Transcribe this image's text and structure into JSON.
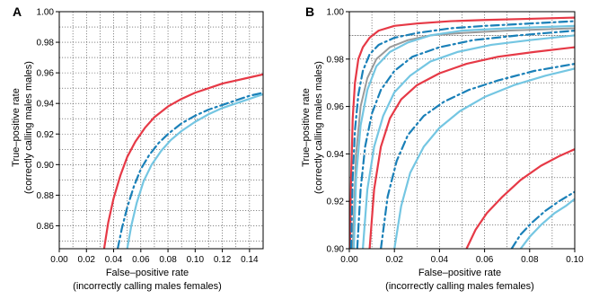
{
  "colors": {
    "red": "#e63946",
    "blue_dashdot": "#1a80b8",
    "light_blue": "#74c6e2",
    "grey": "#9a9a9a"
  },
  "chart_data": [
    {
      "panel": "A",
      "type": "line",
      "xlabel": [
        "False–positive rate",
        "(incorrectly calling males females)"
      ],
      "ylabel": [
        "True–positive rate",
        "(correctly calling males males)"
      ],
      "xlim": [
        0.0,
        0.15
      ],
      "ylim": [
        0.845,
        1.0
      ],
      "xticks": [
        0.0,
        0.02,
        0.04,
        0.06,
        0.08,
        0.1,
        0.12,
        0.14
      ],
      "xtick_labels": [
        "0.00",
        "0.02",
        "0.04",
        "0.06",
        "0.08",
        "0.10",
        "0.12",
        "0.14"
      ],
      "yticks": [
        0.86,
        0.88,
        0.9,
        0.92,
        0.94,
        0.96,
        0.98,
        1.0
      ],
      "ytick_labels": [
        "0.86",
        "0.88",
        "0.90",
        "0.92",
        "0.94",
        "0.96",
        "0.98",
        "1.00"
      ],
      "grid": "dotted",
      "series": [
        {
          "style": "solid",
          "color": "red",
          "x": [
            0.033,
            0.036,
            0.04,
            0.045,
            0.05,
            0.056,
            0.063,
            0.07,
            0.08,
            0.09,
            0.1,
            0.11,
            0.12,
            0.13,
            0.14,
            0.15
          ],
          "y": [
            0.845,
            0.862,
            0.878,
            0.893,
            0.905,
            0.915,
            0.924,
            0.931,
            0.938,
            0.943,
            0.947,
            0.95,
            0.953,
            0.955,
            0.957,
            0.959
          ]
        },
        {
          "style": "dashdot",
          "color": "blue_dashdot",
          "x": [
            0.043,
            0.046,
            0.05,
            0.055,
            0.06,
            0.066,
            0.073,
            0.08,
            0.09,
            0.1,
            0.11,
            0.12,
            0.13,
            0.14,
            0.15
          ],
          "y": [
            0.845,
            0.858,
            0.872,
            0.886,
            0.897,
            0.906,
            0.914,
            0.92,
            0.927,
            0.932,
            0.936,
            0.939,
            0.942,
            0.945,
            0.947
          ]
        },
        {
          "style": "solid",
          "color": "light_blue",
          "x": [
            0.05,
            0.053,
            0.057,
            0.062,
            0.068,
            0.075,
            0.082,
            0.09,
            0.1,
            0.11,
            0.12,
            0.13,
            0.14,
            0.15
          ],
          "y": [
            0.845,
            0.86,
            0.875,
            0.889,
            0.9,
            0.909,
            0.916,
            0.922,
            0.928,
            0.933,
            0.937,
            0.94,
            0.943,
            0.946
          ]
        }
      ]
    },
    {
      "panel": "B",
      "type": "line",
      "xlabel": [
        "False–positive rate",
        "(incorrectly calling males females)"
      ],
      "ylabel": [
        "True–positive rate",
        "(correctly calling males males)"
      ],
      "xlim": [
        0.0,
        0.1
      ],
      "ylim": [
        0.9,
        1.0
      ],
      "xticks": [
        0.0,
        0.02,
        0.04,
        0.06,
        0.08,
        0.1
      ],
      "xtick_labels": [
        "0.00",
        "0.02",
        "0.04",
        "0.06",
        "0.08",
        "0.10"
      ],
      "yticks": [
        0.9,
        0.92,
        0.94,
        0.96,
        0.98,
        1.0
      ],
      "ytick_labels": [
        "0.90",
        "0.92",
        "0.94",
        "0.96",
        "0.98",
        "1.00"
      ],
      "grid": "dotted",
      "series": [
        {
          "style": "solid",
          "color": "red",
          "x": [
            0.0003,
            0.0008,
            0.0015,
            0.0025,
            0.004,
            0.006,
            0.009,
            0.013,
            0.02,
            0.03,
            0.045,
            0.06,
            0.08,
            0.1
          ],
          "y": [
            0.9,
            0.93,
            0.955,
            0.97,
            0.98,
            0.985,
            0.989,
            0.992,
            0.994,
            0.995,
            0.996,
            0.9965,
            0.997,
            0.9975
          ]
        },
        {
          "style": "solid",
          "color": "grey",
          "x": [
            0.0015,
            0.003,
            0.005,
            0.008,
            0.012,
            0.018,
            0.026,
            0.036,
            0.05,
            0.07,
            0.1
          ],
          "y": [
            0.9,
            0.94,
            0.96,
            0.972,
            0.98,
            0.985,
            0.988,
            0.99,
            0.991,
            0.992,
            0.993
          ]
        },
        {
          "style": "dashdot",
          "color": "blue_dashdot",
          "x": [
            0.0008,
            0.0015,
            0.0025,
            0.004,
            0.006,
            0.009,
            0.013,
            0.02,
            0.03,
            0.045,
            0.06,
            0.08,
            0.1
          ],
          "y": [
            0.9,
            0.93,
            0.95,
            0.965,
            0.975,
            0.982,
            0.986,
            0.989,
            0.991,
            0.993,
            0.994,
            0.995,
            0.996
          ]
        },
        {
          "style": "solid",
          "color": "light_blue",
          "x": [
            0.002,
            0.003,
            0.005,
            0.008,
            0.012,
            0.018,
            0.026,
            0.036,
            0.05,
            0.07,
            0.1
          ],
          "y": [
            0.9,
            0.93,
            0.952,
            0.967,
            0.977,
            0.983,
            0.987,
            0.99,
            0.992,
            0.993,
            0.994
          ]
        },
        {
          "style": "dashdot",
          "color": "blue_dashdot",
          "x": [
            0.0035,
            0.005,
            0.007,
            0.01,
            0.014,
            0.02,
            0.028,
            0.04,
            0.055,
            0.075,
            0.1
          ],
          "y": [
            0.9,
            0.925,
            0.943,
            0.957,
            0.967,
            0.975,
            0.981,
            0.985,
            0.988,
            0.99,
            0.992
          ]
        },
        {
          "style": "solid",
          "color": "light_blue",
          "x": [
            0.006,
            0.008,
            0.011,
            0.015,
            0.02,
            0.027,
            0.036,
            0.048,
            0.063,
            0.08,
            0.1
          ],
          "y": [
            0.9,
            0.925,
            0.943,
            0.956,
            0.966,
            0.973,
            0.979,
            0.983,
            0.986,
            0.988,
            0.99
          ]
        },
        {
          "style": "solid",
          "color": "red",
          "x": [
            0.009,
            0.011,
            0.014,
            0.018,
            0.023,
            0.03,
            0.04,
            0.052,
            0.066,
            0.082,
            0.1
          ],
          "y": [
            0.9,
            0.925,
            0.943,
            0.955,
            0.963,
            0.969,
            0.974,
            0.978,
            0.981,
            0.983,
            0.985
          ]
        },
        {
          "style": "dashdot",
          "color": "blue_dashdot",
          "x": [
            0.014,
            0.017,
            0.021,
            0.026,
            0.033,
            0.042,
            0.053,
            0.066,
            0.082,
            0.1
          ],
          "y": [
            0.9,
            0.922,
            0.937,
            0.948,
            0.956,
            0.962,
            0.967,
            0.971,
            0.975,
            0.978
          ]
        },
        {
          "style": "solid",
          "color": "light_blue",
          "x": [
            0.02,
            0.023,
            0.027,
            0.033,
            0.04,
            0.049,
            0.06,
            0.073,
            0.087,
            0.1
          ],
          "y": [
            0.9,
            0.918,
            0.932,
            0.943,
            0.951,
            0.958,
            0.964,
            0.969,
            0.973,
            0.976
          ]
        },
        {
          "style": "solid",
          "color": "red",
          "x": [
            0.052,
            0.056,
            0.061,
            0.068,
            0.076,
            0.085,
            0.093,
            0.1
          ],
          "y": [
            0.9,
            0.908,
            0.915,
            0.922,
            0.929,
            0.935,
            0.939,
            0.942
          ]
        },
        {
          "style": "dashdot",
          "color": "blue_dashdot",
          "x": [
            0.072,
            0.076,
            0.081,
            0.087,
            0.093,
            0.1
          ],
          "y": [
            0.9,
            0.906,
            0.911,
            0.916,
            0.92,
            0.924
          ]
        },
        {
          "style": "solid",
          "color": "light_blue",
          "x": [
            0.076,
            0.08,
            0.085,
            0.091,
            0.096,
            0.1
          ],
          "y": [
            0.9,
            0.905,
            0.91,
            0.915,
            0.918,
            0.921
          ]
        }
      ]
    }
  ]
}
